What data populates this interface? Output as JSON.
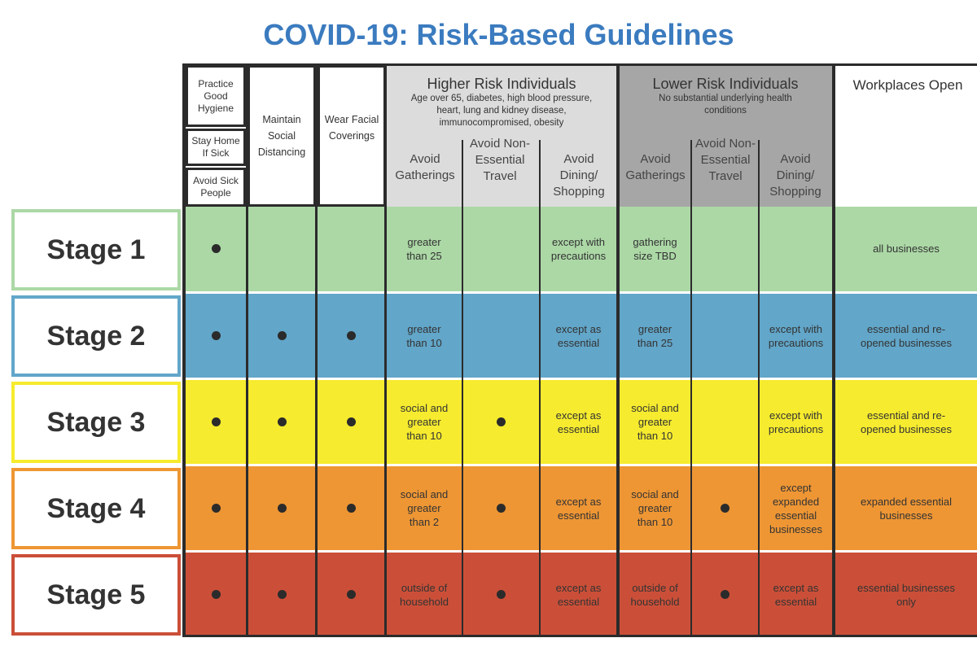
{
  "title": "COVID-19: Risk-Based Guidelines",
  "colors": {
    "title": "#3b7bbf",
    "higher_risk_header": "#dcdcdc",
    "lower_risk_header": "#a6a6a6",
    "stage1": "#acd8a6",
    "stage2": "#62a6c9",
    "stage3": "#f6eb2e",
    "stage4": "#ee9634",
    "stage5": "#cb4f38"
  },
  "headers": {
    "practice_good_hygiene": "Practice Good Hygiene",
    "stay_home_if_sick": "Stay Home If Sick",
    "avoid_sick_people": "Avoid Sick People",
    "maintain_social_distancing": "Maintain Social Distancing",
    "wear_facial_coverings": "Wear Facial Coverings",
    "higher_risk": {
      "title": "Higher Risk Individuals",
      "description": "Age over 65, diabetes, high blood pressure, heart, lung and kidney disease, immunocompromised, obesity",
      "avoid_gatherings": "Avoid Gatherings",
      "avoid_travel": "Avoid Non-Essential Travel",
      "avoid_dining": "Avoid Dining/ Shopping"
    },
    "lower_risk": {
      "title": "Lower Risk Individuals",
      "description": "No substantial underlying health conditions",
      "avoid_gatherings": "Avoid Gatherings",
      "avoid_travel": "Avoid Non-Essential Travel",
      "avoid_dining": "Avoid Dining/ Shopping"
    },
    "workplaces_open": "Workplaces Open"
  },
  "stages": [
    {
      "label": "Stage 1",
      "hygiene": true,
      "distancing": false,
      "coverings": false,
      "hr_gatherings": "greater than 25",
      "hr_travel": false,
      "hr_dining": "except with precautions",
      "lr_gatherings": "gathering size TBD",
      "lr_travel": false,
      "lr_dining": "",
      "workplaces": "all businesses"
    },
    {
      "label": "Stage 2",
      "hygiene": true,
      "distancing": true,
      "coverings": true,
      "hr_gatherings": "greater than 10",
      "hr_travel": false,
      "hr_dining": "except as essential",
      "lr_gatherings": "greater than 25",
      "lr_travel": false,
      "lr_dining": "except with precautions",
      "workplaces": "essential and re-opened businesses"
    },
    {
      "label": "Stage 3",
      "hygiene": true,
      "distancing": true,
      "coverings": true,
      "hr_gatherings": "social and greater than 10",
      "hr_travel": true,
      "hr_dining": "except as essential",
      "lr_gatherings": "social and greater than 10",
      "lr_travel": false,
      "lr_dining": "except with precautions",
      "workplaces": "essential and re-opened businesses"
    },
    {
      "label": "Stage 4",
      "hygiene": true,
      "distancing": true,
      "coverings": true,
      "hr_gatherings": "social and greater than 2",
      "hr_travel": true,
      "hr_dining": "except as essential",
      "lr_gatherings": "social and greater than 10",
      "lr_travel": true,
      "lr_dining": "except expanded essential businesses",
      "workplaces": "expanded essential businesses"
    },
    {
      "label": "Stage 5",
      "hygiene": true,
      "distancing": true,
      "coverings": true,
      "hr_gatherings": "outside of household",
      "hr_travel": true,
      "hr_dining": "except as essential",
      "lr_gatherings": "outside of household",
      "lr_travel": true,
      "lr_dining": "except as essential",
      "workplaces": "essential businesses only"
    }
  ]
}
